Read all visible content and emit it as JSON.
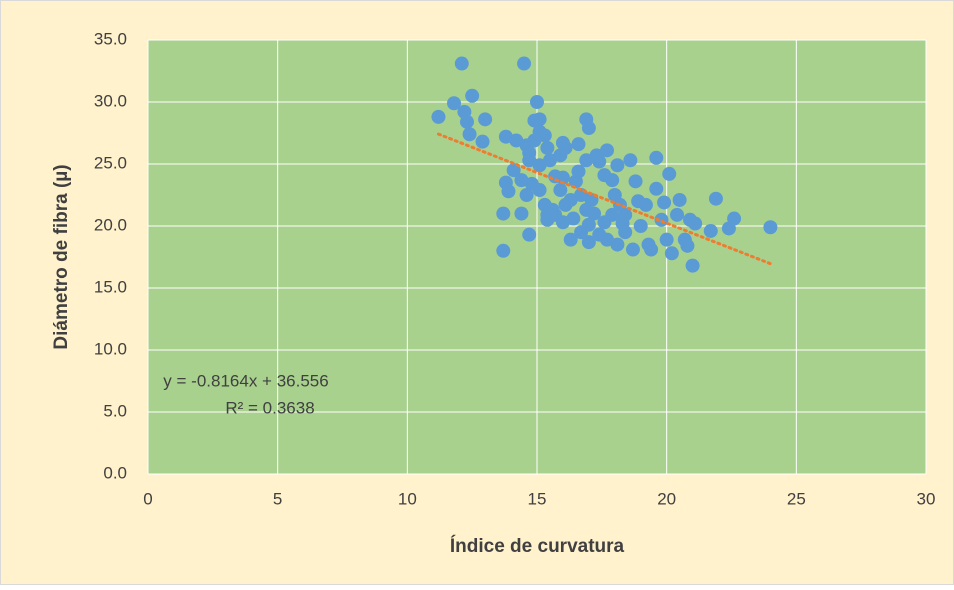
{
  "chart_data": {
    "type": "scatter",
    "xlabel": "Índice de curvatura",
    "ylabel": "Diámetro de fibra (µ)",
    "xlim": [
      0,
      30
    ],
    "ylim": [
      0,
      35
    ],
    "xticks": [
      0,
      5,
      10,
      15,
      20,
      25,
      30
    ],
    "yticks": [
      {
        "value": 0,
        "label": "0.0"
      },
      {
        "value": 5,
        "label": "5.0"
      },
      {
        "value": 10,
        "label": "10.0"
      },
      {
        "value": 15,
        "label": "15.0"
      },
      {
        "value": 20,
        "label": "20.0"
      },
      {
        "value": 25,
        "label": "25.0"
      },
      {
        "value": 30,
        "label": "30.0"
      },
      {
        "value": 35,
        "label": "35.0"
      }
    ],
    "grid": true,
    "plot_background": "#a9d18e",
    "page_background": "#fff2cc",
    "series": [
      {
        "color": "#5b9bd5",
        "x": [
          11.2,
          11.8,
          12.1,
          12.2,
          12.5,
          12.3,
          12.4,
          13.0,
          12.9,
          14.5,
          13.7,
          13.7,
          13.8,
          13.9,
          13.8,
          14.2,
          14.1,
          14.4,
          14.7,
          14.4,
          14.6,
          14.7,
          14.9,
          15.0,
          15.1,
          14.9,
          15.1,
          15.3,
          15.4,
          14.7,
          15.1,
          14.8,
          14.6,
          15.1,
          15.3,
          15.4,
          15.6,
          15.7,
          15.5,
          15.9,
          16.0,
          16.1,
          16.6,
          16.9,
          17.0,
          16.0,
          15.9,
          16.3,
          16.6,
          16.5,
          16.7,
          16.9,
          16.4,
          16.0,
          16.3,
          16.7,
          17.0,
          17.2,
          17.1,
          17.3,
          17.4,
          17.7,
          17.6,
          17.9,
          18.1,
          18.0,
          18.2,
          18.6,
          18.8,
          18.9,
          17.9,
          17.4,
          17.7,
          18.1,
          18.4,
          18.7,
          19.0,
          19.3,
          19.6,
          19.6,
          19.8,
          20.1,
          19.9,
          20.0,
          20.2,
          20.4,
          20.5,
          20.7,
          20.8,
          20.9,
          21.0,
          21.1,
          21.7,
          21.9,
          22.4,
          22.6,
          24.0,
          19.4,
          19.2,
          18.4,
          17.6,
          17.0,
          15.7,
          16.1,
          15.4,
          16.9,
          18.3
        ],
        "values": [
          28.8,
          29.9,
          33.1,
          29.2,
          30.5,
          28.4,
          27.4,
          28.6,
          26.8,
          33.1,
          18.0,
          21.0,
          23.5,
          22.8,
          27.2,
          26.9,
          24.5,
          21.0,
          19.3,
          23.7,
          26.5,
          25.9,
          28.5,
          30.0,
          28.6,
          26.9,
          27.6,
          27.3,
          26.3,
          25.3,
          24.9,
          23.4,
          22.5,
          22.9,
          21.7,
          20.9,
          21.3,
          24.0,
          25.3,
          25.7,
          26.7,
          26.3,
          26.6,
          28.6,
          27.9,
          23.9,
          22.9,
          22.1,
          24.4,
          23.6,
          22.5,
          21.3,
          20.6,
          20.3,
          18.9,
          19.5,
          20.1,
          21.0,
          22.1,
          25.7,
          25.2,
          26.1,
          24.1,
          23.7,
          24.9,
          22.5,
          21.7,
          25.3,
          23.6,
          22.0,
          20.9,
          19.3,
          18.9,
          18.5,
          19.5,
          18.1,
          20.0,
          18.5,
          25.5,
          23.0,
          20.5,
          24.2,
          21.9,
          18.9,
          17.8,
          20.9,
          22.1,
          18.9,
          18.4,
          20.5,
          16.8,
          20.2,
          19.6,
          22.2,
          19.8,
          20.6,
          19.9,
          18.1,
          21.7,
          20.9,
          20.3,
          18.7,
          20.9,
          21.7,
          20.5,
          25.3,
          20.2
        ]
      }
    ],
    "trendline": {
      "color": "#ed7d31",
      "slope": -0.8164,
      "intercept": 36.556,
      "xrange": [
        11.2,
        24.0
      ]
    },
    "annotations": [
      "y = -0.8164x + 36.556",
      "R² = 0.3638"
    ]
  }
}
